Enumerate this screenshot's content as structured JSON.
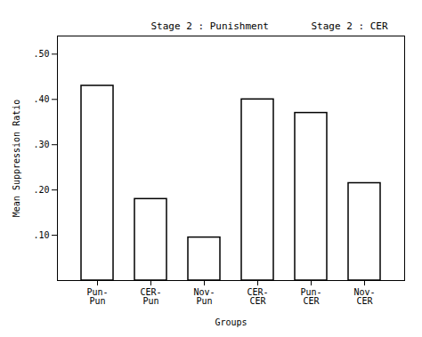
{
  "chart_data": {
    "type": "bar",
    "categories": [
      "Pun-\nPun",
      "CER-\nPun",
      "Nov-\nPun",
      "CER-\nCER",
      "Pun-\nCER",
      "Nov-\nCER"
    ],
    "values": [
      0.43,
      0.18,
      0.095,
      0.4,
      0.37,
      0.215
    ],
    "color": "white",
    "annotations": [
      "Stage 2 : Punishment",
      "Stage 2 : CER"
    ],
    "xlabel": "Groups",
    "ylabel": "Mean Suppression Ratio",
    "ylim": [
      0,
      0.54
    ],
    "yticks": [
      {
        "value": 0.1,
        "label": ".10"
      },
      {
        "value": 0.2,
        "label": ".20"
      },
      {
        "value": 0.3,
        "label": ".30"
      },
      {
        "value": 0.4,
        "label": ".40"
      },
      {
        "value": 0.5,
        "label": ".50"
      }
    ],
    "grid": false
  }
}
